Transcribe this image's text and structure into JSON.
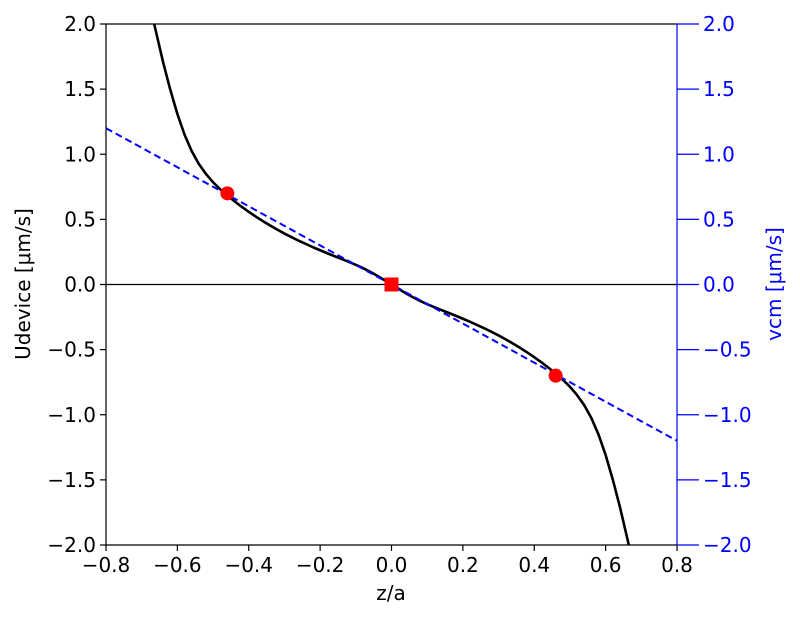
{
  "chart_data": {
    "type": "line",
    "xlabel": "z/a",
    "ylabel_left": "Udevice [μm/s]",
    "ylabel_right": "vcm [μm/s]",
    "xlim": [
      -0.8,
      0.8
    ],
    "ylim_left": [
      -2.0,
      2.0
    ],
    "ylim_right": [
      -2.0,
      2.0
    ],
    "x_ticks": [
      "−0.8",
      "−0.6",
      "−0.4",
      "−0.2",
      "0.0",
      "0.2",
      "0.4",
      "0.6",
      "0.8"
    ],
    "x_tick_values": [
      -0.8,
      -0.6,
      -0.4,
      -0.2,
      0.0,
      0.2,
      0.4,
      0.6,
      0.8
    ],
    "y_ticks_left": [
      "2.0",
      "1.5",
      "1.0",
      "0.5",
      "0.0",
      "−0.5",
      "−1.0",
      "−1.5",
      "−2.0"
    ],
    "y_ticks_right": [
      "2.0",
      "1.5",
      "1.0",
      "0.5",
      "0.0",
      "−0.5",
      "−1.0",
      "−1.5",
      "−2.0"
    ],
    "y_tick_values": [
      2.0,
      1.5,
      1.0,
      0.5,
      0.0,
      -0.5,
      -1.0,
      -1.5,
      -2.0
    ],
    "colors": {
      "udevice": "#000000",
      "vcm": "#0000ff",
      "markers": "#ff0000",
      "right_axis": "#0000ff",
      "zero_line": "#000000"
    },
    "series": [
      {
        "axis": "left",
        "style": "solid",
        "x": [
          -0.665,
          -0.64,
          -0.62,
          -0.6,
          -0.58,
          -0.56,
          -0.54,
          -0.52,
          -0.5,
          -0.48,
          -0.46,
          -0.44,
          -0.42,
          -0.4,
          -0.38,
          -0.36,
          -0.34,
          -0.32,
          -0.3,
          -0.28,
          -0.26,
          -0.24,
          -0.22,
          -0.2,
          -0.18,
          -0.16,
          -0.14,
          -0.12,
          -0.1,
          -0.08,
          -0.06,
          -0.04,
          -0.02,
          0.0,
          0.02,
          0.04,
          0.06,
          0.08,
          0.1,
          0.12,
          0.14,
          0.16,
          0.18,
          0.2,
          0.22,
          0.24,
          0.26,
          0.28,
          0.3,
          0.32,
          0.34,
          0.36,
          0.38,
          0.4,
          0.42,
          0.44,
          0.46,
          0.48,
          0.5,
          0.52,
          0.54,
          0.56,
          0.58,
          0.6,
          0.62,
          0.64,
          0.665
        ],
        "y": [
          2.0,
          1.707,
          1.497,
          1.309,
          1.151,
          1.025,
          0.926,
          0.849,
          0.785,
          0.731,
          0.683,
          0.639,
          0.597,
          0.558,
          0.521,
          0.486,
          0.453,
          0.421,
          0.391,
          0.363,
          0.336,
          0.311,
          0.286,
          0.263,
          0.24,
          0.218,
          0.196,
          0.174,
          0.151,
          0.126,
          0.098,
          0.067,
          0.034,
          0.0,
          -0.034,
          -0.067,
          -0.098,
          -0.126,
          -0.151,
          -0.174,
          -0.196,
          -0.218,
          -0.24,
          -0.263,
          -0.286,
          -0.311,
          -0.336,
          -0.363,
          -0.391,
          -0.421,
          -0.453,
          -0.486,
          -0.521,
          -0.558,
          -0.597,
          -0.639,
          -0.683,
          -0.731,
          -0.785,
          -0.849,
          -0.926,
          -1.025,
          -1.151,
          -1.309,
          -1.497,
          -1.707,
          -2.0
        ]
      },
      {
        "axis": "right",
        "style": "dashed",
        "x": [
          -0.8,
          0.8
        ],
        "y": [
          1.2,
          -1.2
        ]
      }
    ],
    "markers": [
      {
        "shape": "circle",
        "x": -0.46,
        "y": 0.7
      },
      {
        "shape": "square",
        "x": 0.0,
        "y": 0.0
      },
      {
        "shape": "circle",
        "x": 0.46,
        "y": -0.7
      }
    ],
    "grid": false,
    "zero_line": true
  }
}
